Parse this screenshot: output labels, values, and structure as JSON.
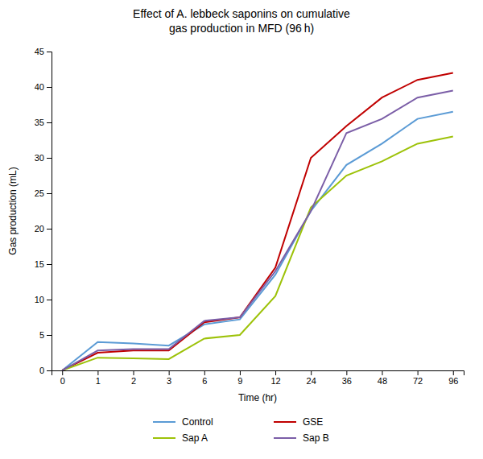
{
  "chart_data": {
    "type": "line",
    "title": "Effect of A. lebbeck saponins on cumulative\ngas production in MFD (96 h)",
    "x_label": "Time (hr)",
    "y_label": "Gas production (mL)",
    "categories": [
      "0",
      "1",
      "2",
      "3",
      "6",
      "9",
      "12",
      "24",
      "36",
      "48",
      "72",
      "96"
    ],
    "series": [
      {
        "name": "Control",
        "color": "#5b9bd5",
        "values": [
          0,
          4.0,
          3.8,
          3.5,
          6.5,
          7.2,
          13.5,
          22.5,
          29.0,
          32.0,
          35.5,
          36.5
        ]
      },
      {
        "name": "GSE",
        "color": "#c00000",
        "values": [
          0,
          2.5,
          2.8,
          2.8,
          6.8,
          7.5,
          14.5,
          30.0,
          34.5,
          38.5,
          41.0,
          42.0
        ]
      },
      {
        "name": "Sap A",
        "color": "#9dc209",
        "values": [
          0,
          1.8,
          1.7,
          1.6,
          4.5,
          5.0,
          10.5,
          23.0,
          27.5,
          29.5,
          32.0,
          33.0
        ]
      },
      {
        "name": "Sap B",
        "color": "#7b5ea7",
        "values": [
          0,
          2.8,
          3.0,
          3.0,
          7.0,
          7.5,
          14.0,
          22.5,
          33.5,
          35.5,
          38.5,
          39.5
        ]
      }
    ],
    "ylim": [
      0,
      45
    ],
    "yticks": [
      0,
      5,
      10,
      15,
      20,
      25,
      30,
      35,
      40,
      45
    ],
    "grid": false,
    "legend": "bottom"
  }
}
